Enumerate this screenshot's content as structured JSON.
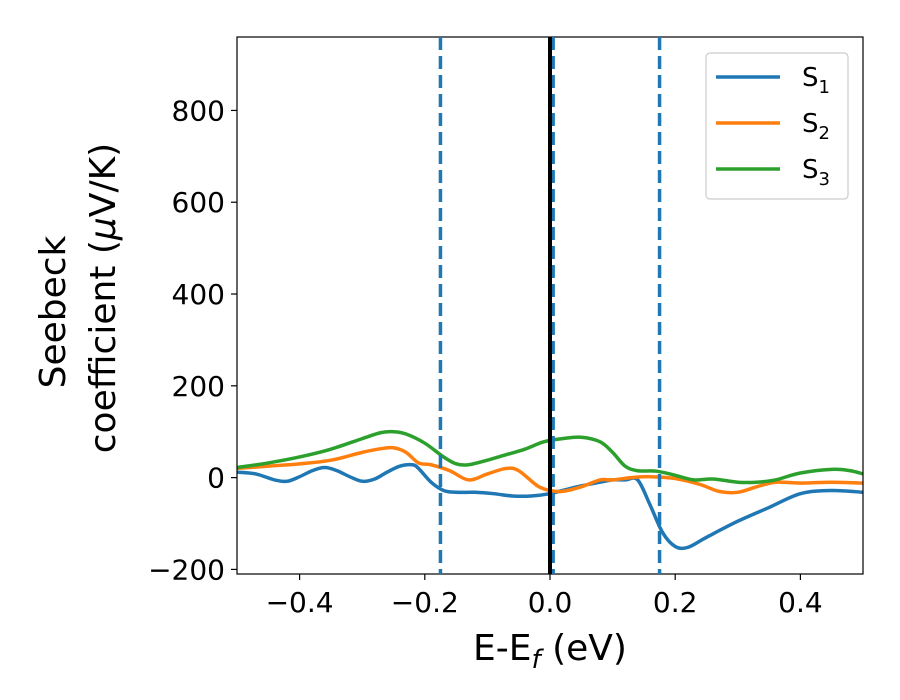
{
  "chart_data": {
    "type": "line",
    "xlabel": {
      "main": "E-E",
      "sub": "f",
      "unit": " (eV)"
    },
    "ylabel": {
      "line1": "Seebeck",
      "line2_prefix": "coefficient  (",
      "mu": "μ",
      "line2_suffix": "V/K)"
    },
    "xlim": [
      -0.5,
      0.5
    ],
    "ylim": [
      -210,
      960
    ],
    "xticks": [
      -0.4,
      -0.2,
      0.0,
      0.2,
      0.4
    ],
    "xtick_labels": [
      "−0.4",
      "−0.2",
      "0.0",
      "0.2",
      "0.4"
    ],
    "yticks": [
      -200,
      0,
      200,
      400,
      600,
      800
    ],
    "ytick_labels": [
      "−200",
      "0",
      "200",
      "400",
      "600",
      "800"
    ],
    "grid": false,
    "legend_position": "top-right",
    "series": [
      {
        "name": "S",
        "subscript": "1",
        "color": "#1f77b4",
        "x": [
          -0.5,
          -0.47,
          -0.44,
          -0.42,
          -0.4,
          -0.38,
          -0.36,
          -0.34,
          -0.32,
          -0.3,
          -0.28,
          -0.26,
          -0.24,
          -0.22,
          -0.21,
          -0.19,
          -0.17,
          -0.15,
          -0.12,
          -0.09,
          -0.06,
          -0.03,
          0.0,
          0.02,
          0.05,
          0.08,
          0.1,
          0.12,
          0.14,
          0.16,
          0.18,
          0.2,
          0.22,
          0.25,
          0.3,
          0.35,
          0.4,
          0.45,
          0.5
        ],
        "y": [
          12,
          8,
          -5,
          -8,
          2,
          15,
          22,
          15,
          2,
          -8,
          -3,
          12,
          25,
          28,
          20,
          -10,
          -28,
          -32,
          -32,
          -35,
          -40,
          -40,
          -35,
          -28,
          -18,
          -10,
          -5,
          -5,
          -5,
          -60,
          -120,
          -150,
          -152,
          -130,
          -95,
          -65,
          -35,
          -28,
          -32
        ]
      },
      {
        "name": "S",
        "subscript": "2",
        "color": "#ff7f0e",
        "x": [
          -0.5,
          -0.45,
          -0.4,
          -0.35,
          -0.3,
          -0.27,
          -0.25,
          -0.23,
          -0.21,
          -0.19,
          -0.16,
          -0.13,
          -0.1,
          -0.07,
          -0.05,
          -0.02,
          0.0,
          0.02,
          0.05,
          0.08,
          0.1,
          0.13,
          0.16,
          0.2,
          0.24,
          0.27,
          0.3,
          0.33,
          0.36,
          0.4,
          0.45,
          0.5
        ],
        "y": [
          20,
          25,
          30,
          38,
          55,
          63,
          65,
          55,
          32,
          28,
          15,
          -5,
          8,
          20,
          15,
          -18,
          -28,
          -30,
          -20,
          -5,
          -5,
          0,
          2,
          -2,
          -15,
          -30,
          -32,
          -20,
          -10,
          -12,
          -10,
          -12
        ]
      },
      {
        "name": "S",
        "subscript": "3",
        "color": "#2ca02c",
        "x": [
          -0.5,
          -0.45,
          -0.4,
          -0.35,
          -0.3,
          -0.27,
          -0.25,
          -0.23,
          -0.2,
          -0.17,
          -0.15,
          -0.13,
          -0.1,
          -0.07,
          -0.04,
          -0.01,
          0.02,
          0.05,
          0.08,
          0.1,
          0.12,
          0.14,
          0.17,
          0.2,
          0.23,
          0.26,
          0.3,
          0.33,
          0.36,
          0.4,
          0.45,
          0.48,
          0.5
        ],
        "y": [
          22,
          32,
          45,
          62,
          85,
          98,
          100,
          95,
          75,
          45,
          30,
          28,
          38,
          50,
          62,
          78,
          85,
          88,
          78,
          55,
          25,
          15,
          14,
          5,
          -5,
          -3,
          -10,
          -10,
          -5,
          10,
          18,
          15,
          8
        ]
      }
    ],
    "vlines": [
      {
        "x": -0.175,
        "color": "#1f77b4",
        "style": "dashed"
      },
      {
        "x": 0.005,
        "color": "#1f77b4",
        "style": "dashed"
      },
      {
        "x": 0.175,
        "color": "#1f77b4",
        "style": "dashed"
      },
      {
        "x": 0.0,
        "color": "#000000",
        "style": "solid"
      }
    ]
  }
}
